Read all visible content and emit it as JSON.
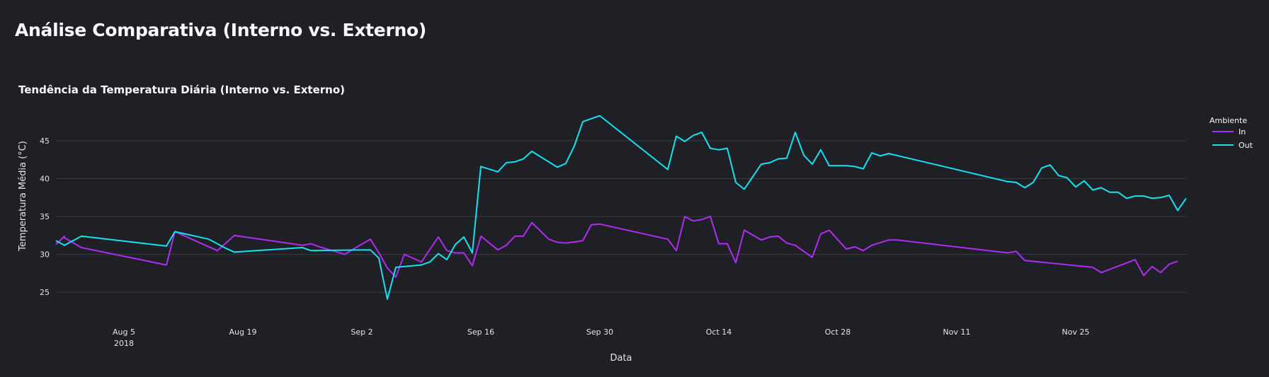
{
  "page": {
    "title": "Análise Comparativa (Interno vs. Externo)"
  },
  "chart_data": {
    "type": "line",
    "title": "Tendência da Temperatura Diária (Interno vs. Externo)",
    "xlabel": "Data",
    "ylabel": "Temperatura Média (°C)",
    "ylim": [
      22.5,
      50.5
    ],
    "xlim": [
      "2018-07-28",
      "2018-12-08"
    ],
    "y_ticks": [
      25,
      30,
      35,
      40,
      45
    ],
    "x_ticks": [
      {
        "date": "2018-08-05",
        "label": "Aug 5",
        "sublabel": "2018"
      },
      {
        "date": "2018-08-19",
        "label": "Aug 19",
        "sublabel": ""
      },
      {
        "date": "2018-09-02",
        "label": "Sep 2",
        "sublabel": ""
      },
      {
        "date": "2018-09-16",
        "label": "Sep 16",
        "sublabel": ""
      },
      {
        "date": "2018-09-30",
        "label": "Sep 30",
        "sublabel": ""
      },
      {
        "date": "2018-10-14",
        "label": "Oct 14",
        "sublabel": ""
      },
      {
        "date": "2018-10-28",
        "label": "Oct 28",
        "sublabel": ""
      },
      {
        "date": "2018-11-11",
        "label": "Nov 11",
        "sublabel": ""
      },
      {
        "date": "2018-11-25",
        "label": "Nov 25",
        "sublabel": ""
      }
    ],
    "grid": true,
    "legend": {
      "title": "Ambiente",
      "placement": "top-right"
    },
    "series": [
      {
        "name": "In",
        "color": "#b12cf2",
        "points": [
          [
            "2018-07-28",
            31.3
          ],
          [
            "2018-07-29",
            32.4
          ],
          [
            "2018-07-29",
            32.2
          ],
          [
            "2018-07-31",
            30.9
          ],
          [
            "2018-08-10",
            28.6
          ],
          [
            "2018-08-11",
            33.0
          ],
          [
            "2018-08-16",
            30.5
          ],
          [
            "2018-08-18",
            32.5
          ],
          [
            "2018-08-26",
            31.2
          ],
          [
            "2018-08-27",
            31.4
          ],
          [
            "2018-08-28",
            31.0
          ],
          [
            "2018-08-31",
            30.0
          ],
          [
            "2018-09-01",
            30.7
          ],
          [
            "2018-09-03",
            32.0
          ],
          [
            "2018-09-04",
            30.2
          ],
          [
            "2018-09-05",
            28.2
          ],
          [
            "2018-09-06",
            27.0
          ],
          [
            "2018-09-07",
            30.0
          ],
          [
            "2018-09-09",
            29.0
          ],
          [
            "2018-09-11",
            32.3
          ],
          [
            "2018-09-12",
            30.5
          ],
          [
            "2018-09-13",
            30.2
          ],
          [
            "2018-09-14",
            30.2
          ],
          [
            "2018-09-15",
            28.5
          ],
          [
            "2018-09-16",
            32.4
          ],
          [
            "2018-09-18",
            30.6
          ],
          [
            "2018-09-19",
            31.2
          ],
          [
            "2018-09-20",
            32.4
          ],
          [
            "2018-09-21",
            32.4
          ],
          [
            "2018-09-22",
            34.2
          ],
          [
            "2018-09-24",
            32.0
          ],
          [
            "2018-09-25",
            31.6
          ],
          [
            "2018-09-26",
            31.5
          ],
          [
            "2018-09-28",
            31.8
          ],
          [
            "2018-09-29",
            33.9
          ],
          [
            "2018-09-30",
            34.0
          ],
          [
            "2018-10-08",
            32.0
          ],
          [
            "2018-10-09",
            30.5
          ],
          [
            "2018-10-10",
            35.0
          ],
          [
            "2018-10-11",
            34.4
          ],
          [
            "2018-10-12",
            34.6
          ],
          [
            "2018-10-13",
            35.0
          ],
          [
            "2018-10-14",
            31.4
          ],
          [
            "2018-10-15",
            31.4
          ],
          [
            "2018-10-16",
            28.9
          ],
          [
            "2018-10-17",
            33.2
          ],
          [
            "2018-10-19",
            31.9
          ],
          [
            "2018-10-20",
            32.3
          ],
          [
            "2018-10-21",
            32.4
          ],
          [
            "2018-10-22",
            31.5
          ],
          [
            "2018-10-23",
            31.2
          ],
          [
            "2018-10-25",
            29.6
          ],
          [
            "2018-10-26",
            32.7
          ],
          [
            "2018-10-27",
            33.2
          ],
          [
            "2018-10-29",
            30.7
          ],
          [
            "2018-10-30",
            31.0
          ],
          [
            "2018-10-31",
            30.5
          ],
          [
            "2018-11-01",
            31.2
          ],
          [
            "2018-11-03",
            31.9
          ],
          [
            "2018-11-04",
            31.9
          ],
          [
            "2018-11-17",
            30.2
          ],
          [
            "2018-11-18",
            30.4
          ],
          [
            "2018-11-19",
            29.2
          ],
          [
            "2018-11-27",
            28.3
          ],
          [
            "2018-11-28",
            27.6
          ],
          [
            "2018-12-02",
            29.3
          ],
          [
            "2018-12-03",
            27.2
          ],
          [
            "2018-12-04",
            28.4
          ],
          [
            "2018-12-05",
            27.6
          ],
          [
            "2018-12-06",
            28.7
          ],
          [
            "2018-12-07",
            29.1
          ]
        ]
      },
      {
        "name": "Out",
        "color": "#15e2f0",
        "points": [
          [
            "2018-07-28",
            31.8
          ],
          [
            "2018-07-29",
            31.2
          ],
          [
            "2018-07-31",
            32.4
          ],
          [
            "2018-08-10",
            31.1
          ],
          [
            "2018-08-11",
            33.0
          ],
          [
            "2018-08-15",
            32.0
          ],
          [
            "2018-08-17",
            30.8
          ],
          [
            "2018-08-18",
            30.3
          ],
          [
            "2018-08-26",
            30.9
          ],
          [
            "2018-08-27",
            30.5
          ],
          [
            "2018-09-03",
            30.6
          ],
          [
            "2018-09-04",
            29.5
          ],
          [
            "2018-09-05",
            24.1
          ],
          [
            "2018-09-06",
            28.3
          ],
          [
            "2018-09-09",
            28.6
          ],
          [
            "2018-09-10",
            29.0
          ],
          [
            "2018-09-11",
            30.1
          ],
          [
            "2018-09-12",
            29.3
          ],
          [
            "2018-09-13",
            31.3
          ],
          [
            "2018-09-14",
            32.3
          ],
          [
            "2018-09-15",
            30.2
          ],
          [
            "2018-09-16",
            41.6
          ],
          [
            "2018-09-18",
            40.9
          ],
          [
            "2018-09-19",
            42.1
          ],
          [
            "2018-09-20",
            42.2
          ],
          [
            "2018-09-21",
            42.6
          ],
          [
            "2018-09-22",
            43.6
          ],
          [
            "2018-09-25",
            41.5
          ],
          [
            "2018-09-26",
            42.0
          ],
          [
            "2018-09-27",
            44.3
          ],
          [
            "2018-09-28",
            47.5
          ],
          [
            "2018-09-30",
            48.3
          ],
          [
            "2018-10-08",
            41.2
          ],
          [
            "2018-10-09",
            45.6
          ],
          [
            "2018-10-10",
            44.9
          ],
          [
            "2018-10-11",
            45.7
          ],
          [
            "2018-10-12",
            46.1
          ],
          [
            "2018-10-13",
            44.0
          ],
          [
            "2018-10-14",
            43.8
          ],
          [
            "2018-10-15",
            44.0
          ],
          [
            "2018-10-16",
            39.5
          ],
          [
            "2018-10-17",
            38.6
          ],
          [
            "2018-10-19",
            41.9
          ],
          [
            "2018-10-20",
            42.1
          ],
          [
            "2018-10-21",
            42.6
          ],
          [
            "2018-10-22",
            42.7
          ],
          [
            "2018-10-23",
            46.1
          ],
          [
            "2018-10-24",
            43.1
          ],
          [
            "2018-10-25",
            41.9
          ],
          [
            "2018-10-26",
            43.8
          ],
          [
            "2018-10-27",
            41.7
          ],
          [
            "2018-10-29",
            41.7
          ],
          [
            "2018-10-30",
            41.6
          ],
          [
            "2018-10-31",
            41.3
          ],
          [
            "2018-11-01",
            43.4
          ],
          [
            "2018-11-02",
            43.0
          ],
          [
            "2018-11-03",
            43.3
          ],
          [
            "2018-11-17",
            39.6
          ],
          [
            "2018-11-18",
            39.5
          ],
          [
            "2018-11-19",
            38.8
          ],
          [
            "2018-11-20",
            39.5
          ],
          [
            "2018-11-21",
            41.4
          ],
          [
            "2018-11-22",
            41.8
          ],
          [
            "2018-11-23",
            40.4
          ],
          [
            "2018-11-24",
            40.1
          ],
          [
            "2018-11-25",
            38.9
          ],
          [
            "2018-11-26",
            39.7
          ],
          [
            "2018-11-27",
            38.5
          ],
          [
            "2018-11-28",
            38.8
          ],
          [
            "2018-11-29",
            38.2
          ],
          [
            "2018-11-30",
            38.2
          ],
          [
            "2018-12-01",
            37.4
          ],
          [
            "2018-12-02",
            37.7
          ],
          [
            "2018-12-03",
            37.7
          ],
          [
            "2018-12-04",
            37.4
          ],
          [
            "2018-12-05",
            37.5
          ],
          [
            "2018-12-06",
            37.8
          ],
          [
            "2018-12-07",
            35.8
          ],
          [
            "2018-12-08",
            37.4
          ]
        ]
      }
    ]
  }
}
